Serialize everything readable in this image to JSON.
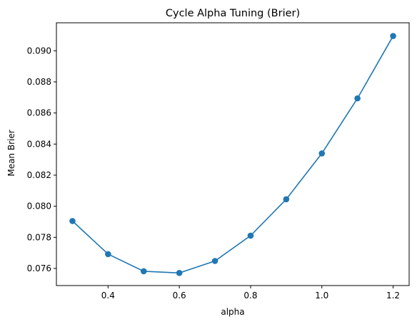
{
  "chart_data": {
    "type": "line",
    "title": "Cycle Alpha Tuning (Brier)",
    "xlabel": "alpha",
    "ylabel": "Mean Brier",
    "xlim": [
      0.255,
      1.245
    ],
    "ylim": [
      0.0749,
      0.0918
    ],
    "xticks": [
      0.4,
      0.6,
      0.8,
      1.0,
      1.2
    ],
    "xtick_labels": [
      "0.4",
      "0.6",
      "0.8",
      "1.0",
      "1.2"
    ],
    "yticks": [
      0.076,
      0.078,
      0.08,
      0.082,
      0.084,
      0.086,
      0.088,
      0.09
    ],
    "ytick_labels": [
      "0.076",
      "0.078",
      "0.080",
      "0.082",
      "0.084",
      "0.086",
      "0.088",
      "0.090"
    ],
    "grid": false,
    "color": "#1f77b4",
    "marker": "circle",
    "x": [
      0.3,
      0.4,
      0.5,
      0.6,
      0.7,
      0.8,
      0.9,
      1.0,
      1.1,
      1.2
    ],
    "y": [
      0.07905,
      0.07692,
      0.07582,
      0.07571,
      0.07648,
      0.07811,
      0.08045,
      0.0834,
      0.08694,
      0.09095
    ]
  }
}
